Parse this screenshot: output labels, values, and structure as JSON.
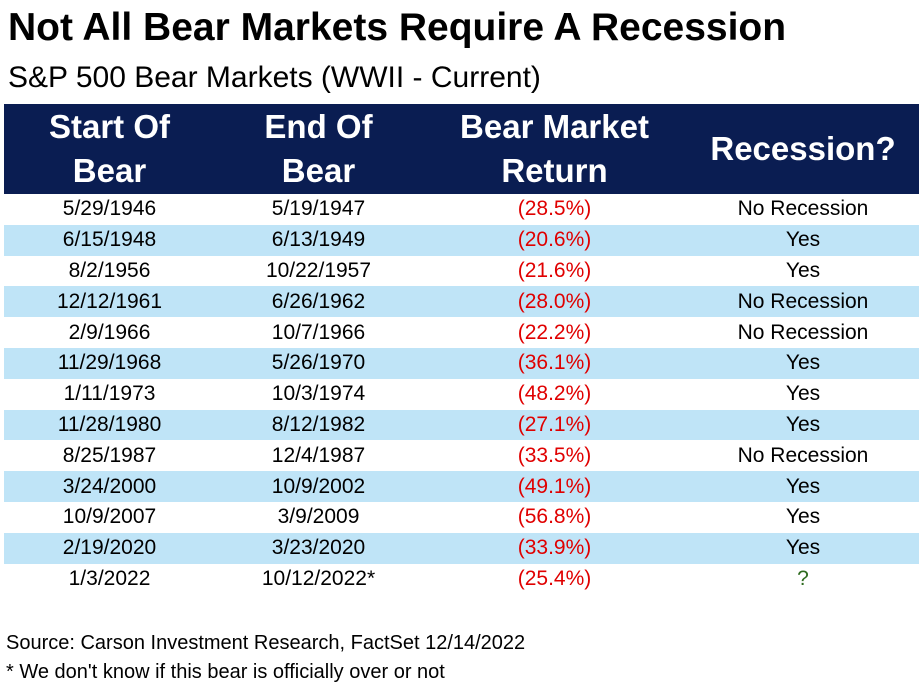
{
  "title": "Not All Bear Markets Require A Recession",
  "subtitle": "S&P 500 Bear Markets (WWII - Current)",
  "chart_data": {
    "type": "table",
    "columns": [
      {
        "line1": "Start Of",
        "line2": "Bear"
      },
      {
        "line1": "End Of",
        "line2": "Bear"
      },
      {
        "line1": "Bear Market",
        "line2": "Return"
      },
      {
        "line1": "Recession?",
        "line2": ""
      }
    ],
    "rows": [
      {
        "start": "5/29/1946",
        "end": "5/19/1947",
        "return": "(28.5%)",
        "recession": "No Recession"
      },
      {
        "start": "6/15/1948",
        "end": "6/13/1949",
        "return": "(20.6%)",
        "recession": "Yes"
      },
      {
        "start": "8/2/1956",
        "end": "10/22/1957",
        "return": "(21.6%)",
        "recession": "Yes"
      },
      {
        "start": "12/12/1961",
        "end": "6/26/1962",
        "return": "(28.0%)",
        "recession": "No Recession"
      },
      {
        "start": "2/9/1966",
        "end": "10/7/1966",
        "return": "(22.2%)",
        "recession": "No Recession"
      },
      {
        "start": "11/29/1968",
        "end": "5/26/1970",
        "return": "(36.1%)",
        "recession": "Yes"
      },
      {
        "start": "1/11/1973",
        "end": "10/3/1974",
        "return": "(48.2%)",
        "recession": "Yes"
      },
      {
        "start": "11/28/1980",
        "end": "8/12/1982",
        "return": "(27.1%)",
        "recession": "Yes"
      },
      {
        "start": "8/25/1987",
        "end": "12/4/1987",
        "return": "(33.5%)",
        "recession": "No Recession"
      },
      {
        "start": "3/24/2000",
        "end": "10/9/2002",
        "return": "(49.1%)",
        "recession": "Yes"
      },
      {
        "start": "10/9/2007",
        "end": "3/9/2009",
        "return": "(56.8%)",
        "recession": "Yes"
      },
      {
        "start": "2/19/2020",
        "end": "3/23/2020",
        "return": "(33.9%)",
        "recession": "Yes"
      },
      {
        "start": "1/3/2022",
        "end": "10/12/2022*",
        "return": "(25.4%)",
        "recession": "?"
      }
    ]
  },
  "source": "Source: Carson Investment Research, FactSet 12/14/2022",
  "footnote": "* We don't know if this bear is officially over or not",
  "colors": {
    "header_bg": "#0a1d52",
    "header_text": "#ffffff",
    "alt_row_bg": "#bfe4f7",
    "return_text": "#e00000",
    "unknown_text": "#2e6b1f"
  }
}
